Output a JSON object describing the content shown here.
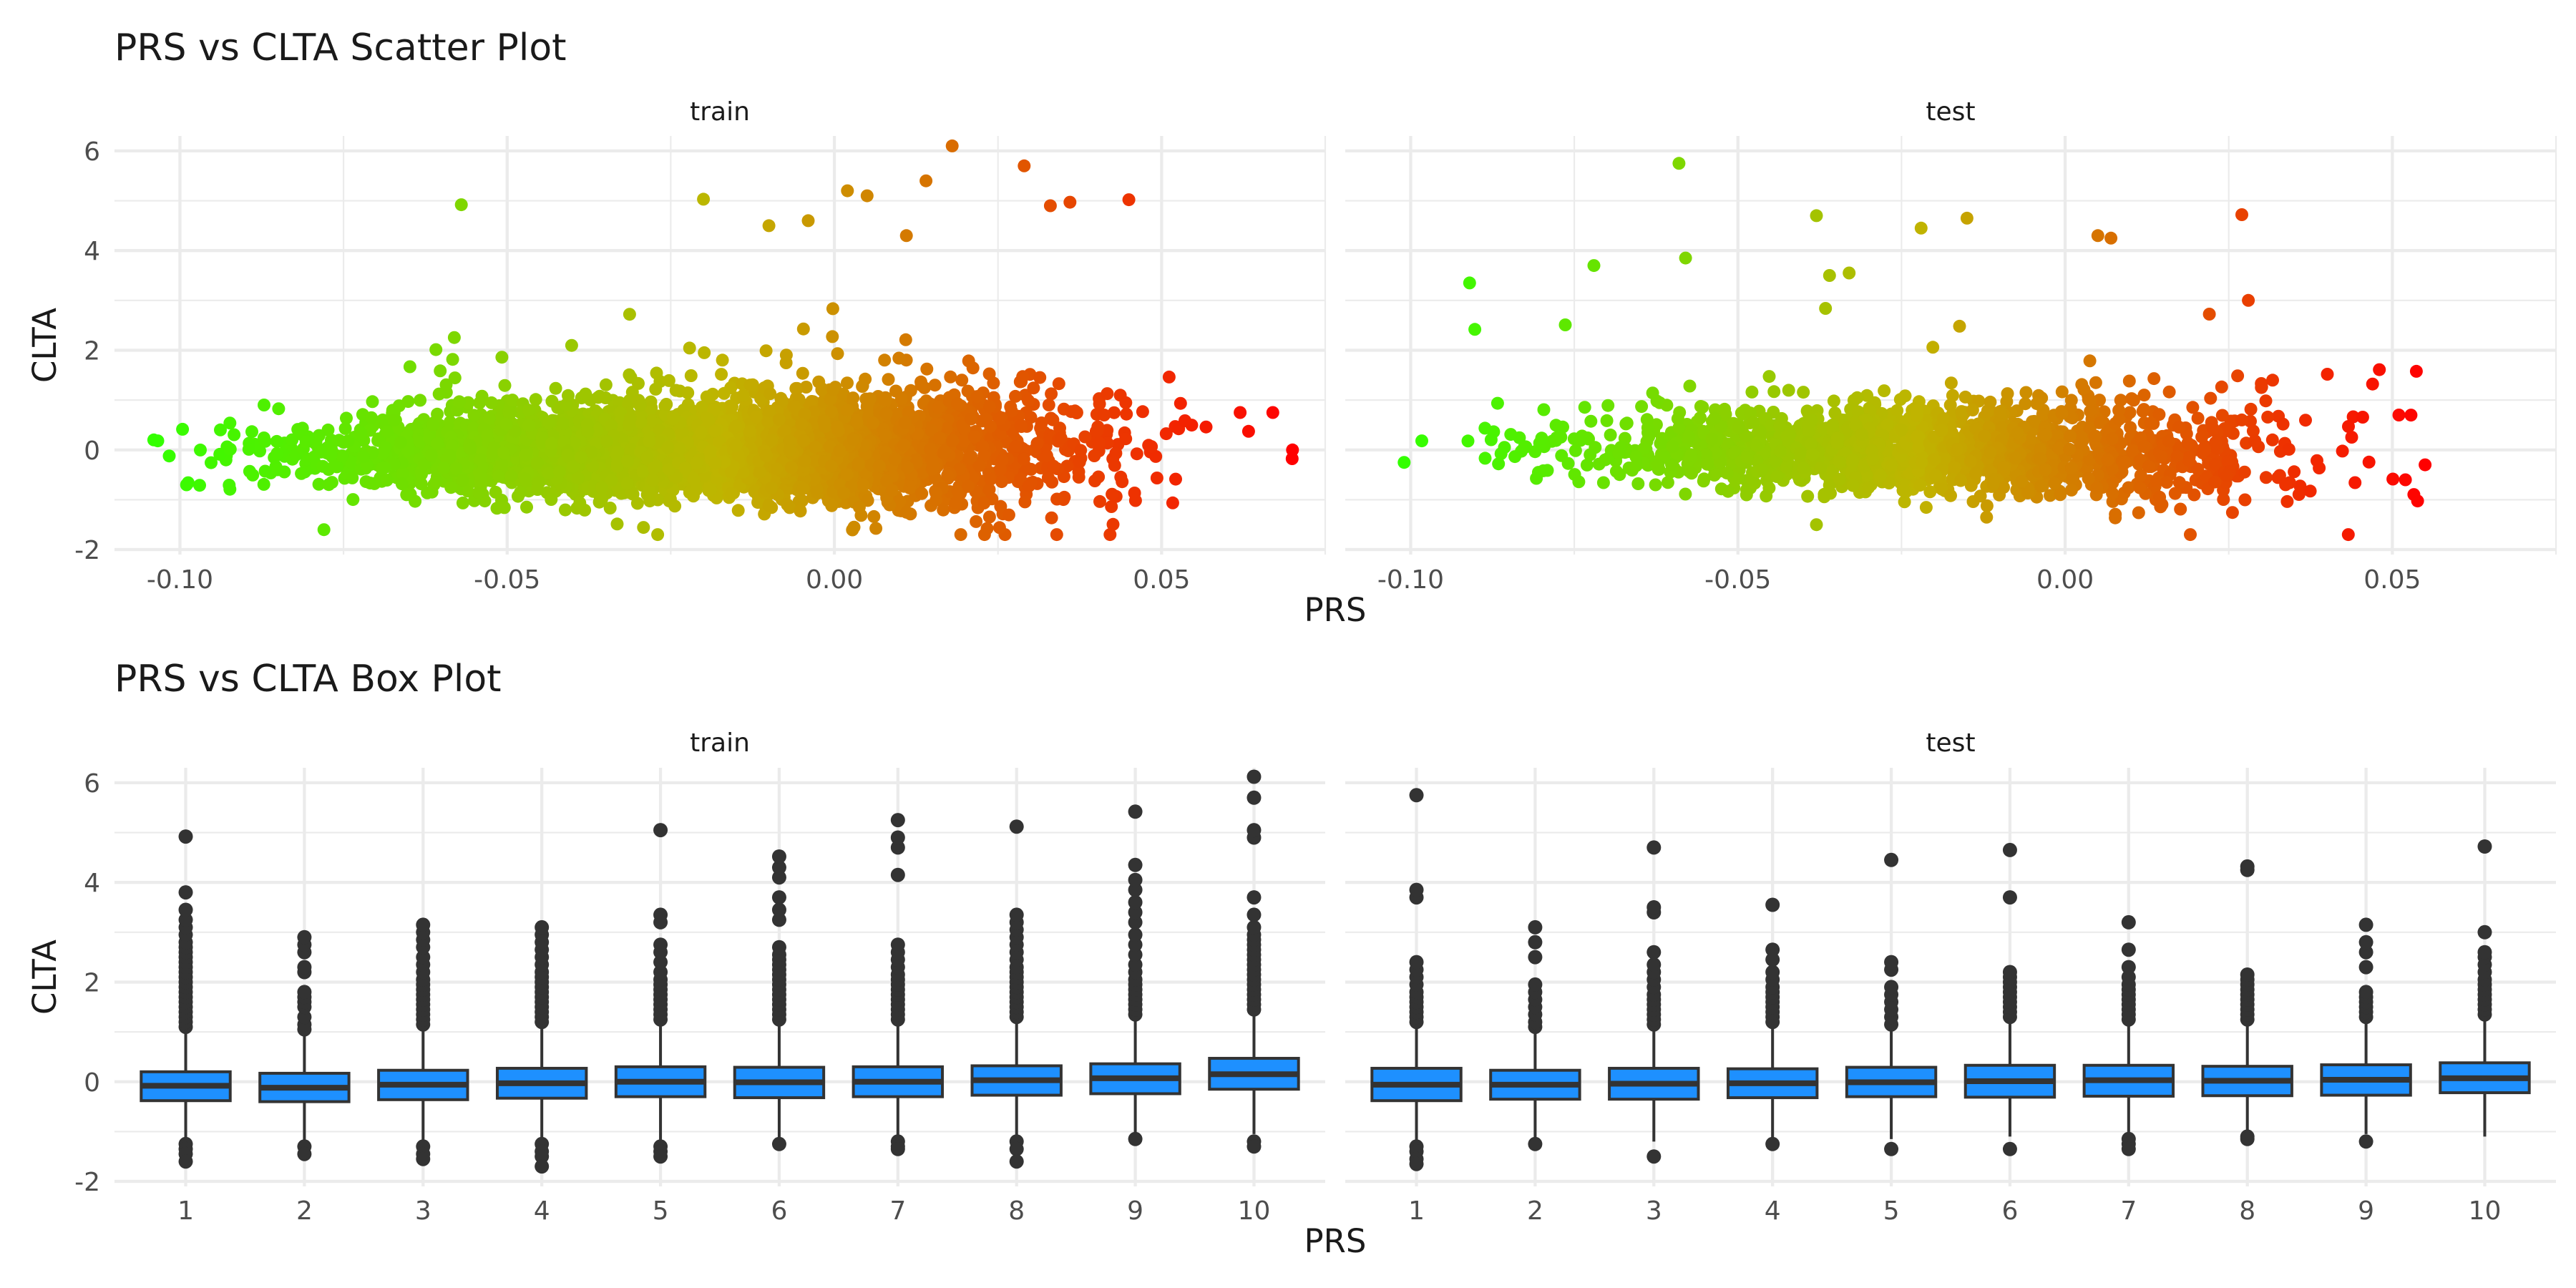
{
  "colors": {
    "low": "#33ff00",
    "mid": "#c0b400",
    "high": "#ff0000",
    "box_fill": "#1e90ff",
    "box_line": "#333333",
    "grid": "#ebebeb"
  },
  "chart_data": [
    {
      "type": "scatter",
      "title": "PRS vs CLTA Scatter Plot",
      "xlabel": "PRS",
      "ylabel": "CLTA",
      "x_ticks": [
        "-0.10",
        "-0.05",
        "0.00",
        "0.05"
      ],
      "y_ticks": [
        "6",
        "4",
        "2",
        "0",
        "-2"
      ],
      "xlim": [
        -0.11,
        0.075
      ],
      "ylim": [
        -2.1,
        6.3
      ],
      "grid": true,
      "color_scale": "gradient by PRS (green to red)",
      "panels": [
        {
          "facet": "train",
          "n_points_approx": 20000,
          "x_range": [
            -0.104,
            0.07
          ],
          "x_center": -0.02,
          "x_sd": 0.026,
          "y_median": 0.0,
          "y_iqr": [
            -0.35,
            0.3
          ],
          "outliers": [
            [
              -0.057,
              4.92
            ],
            [
              0.018,
              6.1
            ],
            [
              0.029,
              5.7
            ],
            [
              -0.02,
              5.03
            ],
            [
              0.045,
              5.02
            ],
            [
              0.036,
              4.97
            ],
            [
              0.033,
              4.9
            ],
            [
              0.002,
              5.2
            ],
            [
              0.005,
              5.1
            ],
            [
              0.014,
              5.4
            ],
            [
              0.011,
              4.3
            ],
            [
              -0.01,
              4.5
            ],
            [
              -0.004,
              4.6
            ],
            [
              0.07,
              0.0
            ],
            [
              0.067,
              0.75
            ],
            [
              0.062,
              0.75
            ],
            [
              -0.104,
              0.2
            ],
            [
              -0.078,
              -1.6
            ],
            [
              -0.027,
              -1.7
            ],
            [
              0.003,
              -1.55
            ]
          ]
        },
        {
          "facet": "test",
          "n_points_approx": 7000,
          "x_range": [
            -0.1,
            0.055
          ],
          "x_center": -0.02,
          "x_sd": 0.026,
          "y_median": 0.0,
          "y_iqr": [
            -0.35,
            0.3
          ],
          "outliers": [
            [
              -0.059,
              5.75
            ],
            [
              -0.058,
              3.85
            ],
            [
              -0.072,
              3.7
            ],
            [
              -0.091,
              3.35
            ],
            [
              -0.038,
              4.7
            ],
            [
              -0.022,
              4.45
            ],
            [
              -0.015,
              4.65
            ],
            [
              0.027,
              4.72
            ],
            [
              0.005,
              4.3
            ],
            [
              0.007,
              4.25
            ],
            [
              -0.036,
              3.5
            ],
            [
              -0.033,
              3.55
            ],
            [
              0.028,
              3.0
            ],
            [
              -0.101,
              -0.25
            ],
            [
              0.051,
              0.7
            ],
            [
              0.052,
              -0.6
            ],
            [
              0.055,
              -0.3
            ],
            [
              -0.038,
              -1.5
            ],
            [
              -0.012,
              -1.35
            ]
          ]
        }
      ]
    },
    {
      "type": "box",
      "title": "PRS vs CLTA Box Plot",
      "xlabel": "PRS",
      "ylabel": "CLTA",
      "categories": [
        "1",
        "2",
        "3",
        "4",
        "5",
        "6",
        "7",
        "8",
        "9",
        "10"
      ],
      "y_ticks": [
        "6",
        "4",
        "2",
        "0",
        "-2"
      ],
      "ylim": [
        -2.1,
        6.3
      ],
      "grid": true,
      "panels": [
        {
          "facet": "train",
          "boxes": [
            {
              "q1": -0.38,
              "median": -0.08,
              "q3": 0.2,
              "whisker_low": -1.2,
              "whisker_high": 1.05,
              "outliers_low": [
                -1.25,
                -1.35,
                -1.45,
                -1.6
              ],
              "outliers_high": [
                1.1,
                1.2,
                1.3,
                1.4,
                1.5,
                1.6,
                1.7,
                1.8,
                1.9,
                2.0,
                2.1,
                2.2,
                2.3,
                2.4,
                2.5,
                2.6,
                2.7,
                2.8,
                2.95,
                3.1,
                3.25,
                3.45,
                3.8,
                4.92
              ]
            },
            {
              "q1": -0.4,
              "median": -0.12,
              "q3": 0.17,
              "whisker_low": -1.25,
              "whisker_high": 1.0,
              "outliers_low": [
                -1.3,
                -1.45
              ],
              "outliers_high": [
                1.05,
                1.15,
                1.3,
                1.5,
                1.6,
                1.7,
                1.8,
                2.2,
                2.3,
                2.6,
                2.75,
                2.9
              ]
            },
            {
              "q1": -0.36,
              "median": -0.06,
              "q3": 0.23,
              "whisker_low": -1.2,
              "whisker_high": 1.1,
              "outliers_low": [
                -1.3,
                -1.45,
                -1.55
              ],
              "outliers_high": [
                1.15,
                1.25,
                1.35,
                1.45,
                1.55,
                1.65,
                1.75,
                1.85,
                1.95,
                2.05,
                2.2,
                2.35,
                2.5,
                2.7,
                2.85,
                3.0,
                3.15
              ]
            },
            {
              "q1": -0.33,
              "median": -0.03,
              "q3": 0.27,
              "whisker_low": -1.2,
              "whisker_high": 1.15,
              "outliers_low": [
                -1.25,
                -1.4,
                -1.5,
                -1.7
              ],
              "outliers_high": [
                1.2,
                1.3,
                1.4,
                1.5,
                1.6,
                1.7,
                1.8,
                1.9,
                2.0,
                2.1,
                2.2,
                2.35,
                2.5,
                2.65,
                2.8,
                2.95,
                3.1
              ]
            },
            {
              "q1": -0.3,
              "median": 0.0,
              "q3": 0.3,
              "whisker_low": -1.2,
              "whisker_high": 1.2,
              "outliers_low": [
                -1.3,
                -1.4,
                -1.5
              ],
              "outliers_high": [
                1.25,
                1.35,
                1.45,
                1.55,
                1.65,
                1.75,
                1.85,
                1.95,
                2.05,
                2.2,
                2.4,
                2.6,
                2.75,
                3.2,
                3.35,
                5.05
              ]
            },
            {
              "q1": -0.32,
              "median": -0.01,
              "q3": 0.29,
              "whisker_low": -1.15,
              "whisker_high": 1.2,
              "outliers_low": [
                -1.25
              ],
              "outliers_high": [
                1.25,
                1.35,
                1.45,
                1.55,
                1.65,
                1.75,
                1.85,
                1.95,
                2.05,
                2.15,
                2.25,
                2.35,
                2.45,
                2.55,
                2.7,
                3.25,
                3.45,
                3.7,
                4.1,
                4.3,
                4.52
              ]
            },
            {
              "q1": -0.3,
              "median": 0.0,
              "q3": 0.3,
              "whisker_low": -1.15,
              "whisker_high": 1.2,
              "outliers_low": [
                -1.2,
                -1.3,
                -1.35
              ],
              "outliers_high": [
                1.25,
                1.35,
                1.45,
                1.55,
                1.65,
                1.75,
                1.85,
                1.95,
                2.05,
                2.15,
                2.3,
                2.45,
                2.6,
                2.75,
                4.15,
                4.7,
                4.9,
                5.25
              ]
            },
            {
              "q1": -0.27,
              "median": 0.03,
              "q3": 0.32,
              "whisker_low": -1.1,
              "whisker_high": 1.25,
              "outliers_low": [
                -1.2,
                -1.35,
                -1.6
              ],
              "outliers_high": [
                1.3,
                1.4,
                1.5,
                1.6,
                1.7,
                1.8,
                1.9,
                2.0,
                2.1,
                2.2,
                2.3,
                2.45,
                2.6,
                2.75,
                2.9,
                3.05,
                3.2,
                3.35,
                5.12
              ]
            },
            {
              "q1": -0.24,
              "median": 0.07,
              "q3": 0.36,
              "whisker_low": -1.05,
              "whisker_high": 1.3,
              "outliers_low": [
                -1.15
              ],
              "outliers_high": [
                1.35,
                1.45,
                1.55,
                1.65,
                1.75,
                1.85,
                1.95,
                2.05,
                2.2,
                2.35,
                2.55,
                2.75,
                2.95,
                3.2,
                3.4,
                3.6,
                3.85,
                4.05,
                4.35,
                5.42
              ]
            },
            {
              "q1": -0.15,
              "median": 0.15,
              "q3": 0.47,
              "whisker_low": -1.05,
              "whisker_high": 1.4,
              "outliers_low": [
                -1.2,
                -1.3
              ],
              "outliers_high": [
                1.45,
                1.55,
                1.65,
                1.75,
                1.85,
                1.95,
                2.05,
                2.15,
                2.25,
                2.35,
                2.45,
                2.55,
                2.65,
                2.75,
                2.85,
                2.95,
                3.1,
                3.35,
                3.7,
                4.9,
                5.05,
                5.7,
                6.12
              ]
            }
          ]
        },
        {
          "facet": "test",
          "boxes": [
            {
              "q1": -0.38,
              "median": -0.06,
              "q3": 0.27,
              "whisker_low": -1.2,
              "whisker_high": 1.15,
              "outliers_low": [
                -1.3,
                -1.4,
                -1.55,
                -1.65
              ],
              "outliers_high": [
                1.2,
                1.3,
                1.4,
                1.5,
                1.6,
                1.7,
                1.8,
                1.95,
                2.1,
                2.25,
                2.4,
                3.7,
                3.85,
                5.75
              ]
            },
            {
              "q1": -0.35,
              "median": -0.06,
              "q3": 0.23,
              "whisker_low": -1.2,
              "whisker_high": 1.05,
              "outliers_low": [
                -1.25
              ],
              "outliers_high": [
                1.1,
                1.2,
                1.35,
                1.5,
                1.65,
                1.8,
                1.95,
                2.5,
                2.8,
                3.1
              ]
            },
            {
              "q1": -0.35,
              "median": -0.04,
              "q3": 0.27,
              "whisker_low": -1.2,
              "whisker_high": 1.1,
              "outliers_low": [
                -1.5
              ],
              "outliers_high": [
                1.15,
                1.25,
                1.35,
                1.45,
                1.55,
                1.65,
                1.75,
                1.9,
                2.05,
                2.2,
                2.35,
                2.6,
                3.4,
                3.5,
                4.7
              ]
            },
            {
              "q1": -0.32,
              "median": -0.03,
              "q3": 0.26,
              "whisker_low": -1.15,
              "whisker_high": 1.15,
              "outliers_low": [
                -1.25
              ],
              "outliers_high": [
                1.2,
                1.3,
                1.4,
                1.5,
                1.6,
                1.7,
                1.8,
                1.9,
                2.05,
                2.2,
                2.45,
                2.65,
                3.55
              ]
            },
            {
              "q1": -0.3,
              "median": -0.01,
              "q3": 0.29,
              "whisker_low": -1.15,
              "whisker_high": 1.1,
              "outliers_low": [
                -1.35
              ],
              "outliers_high": [
                1.15,
                1.3,
                1.45,
                1.6,
                1.75,
                1.9,
                2.25,
                2.4,
                4.45
              ]
            },
            {
              "q1": -0.31,
              "median": 0.01,
              "q3": 0.33,
              "whisker_low": -1.1,
              "whisker_high": 1.25,
              "outliers_low": [
                -1.35
              ],
              "outliers_high": [
                1.3,
                1.4,
                1.5,
                1.6,
                1.7,
                1.8,
                1.9,
                2.0,
                2.1,
                2.2,
                3.7,
                4.65
              ]
            },
            {
              "q1": -0.29,
              "median": 0.03,
              "q3": 0.33,
              "whisker_low": -1.05,
              "whisker_high": 1.2,
              "outliers_low": [
                -1.15,
                -1.25,
                -1.35
              ],
              "outliers_high": [
                1.25,
                1.35,
                1.45,
                1.55,
                1.65,
                1.75,
                1.85,
                1.95,
                2.1,
                2.3,
                2.65,
                3.2
              ]
            },
            {
              "q1": -0.28,
              "median": 0.02,
              "q3": 0.31,
              "whisker_low": -1.05,
              "whisker_high": 1.2,
              "outliers_low": [
                -1.1,
                -1.15
              ],
              "outliers_high": [
                1.25,
                1.35,
                1.45,
                1.55,
                1.65,
                1.75,
                1.85,
                1.95,
                2.05,
                2.15,
                4.25,
                4.32
              ]
            },
            {
              "q1": -0.27,
              "median": 0.04,
              "q3": 0.34,
              "whisker_low": -1.05,
              "whisker_high": 1.25,
              "outliers_low": [
                -1.2
              ],
              "outliers_high": [
                1.3,
                1.4,
                1.5,
                1.6,
                1.7,
                1.8,
                2.3,
                2.6,
                2.8,
                3.15
              ]
            },
            {
              "q1": -0.22,
              "median": 0.07,
              "q3": 0.38,
              "whisker_low": -1.1,
              "whisker_high": 1.3,
              "outliers_low": [],
              "outliers_high": [
                1.35,
                1.45,
                1.55,
                1.65,
                1.75,
                1.85,
                1.95,
                2.05,
                2.2,
                2.35,
                2.5,
                2.6,
                3.0,
                4.72
              ]
            }
          ]
        }
      ]
    }
  ]
}
